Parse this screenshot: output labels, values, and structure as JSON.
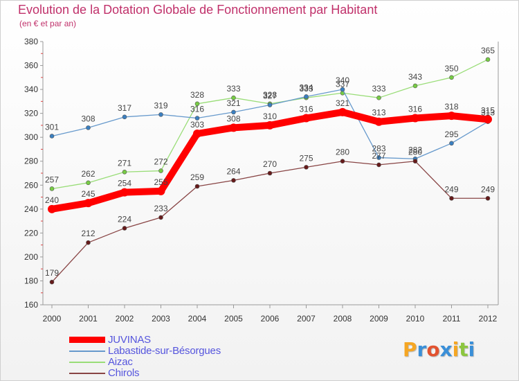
{
  "title": "Evolution de la Dotation Globale de Fonctionnement par Habitant",
  "subtitle": "(en € et par an)",
  "logo": {
    "text": "Proxiti",
    "letters": [
      {
        "ch": "P",
        "color": "#f5a623"
      },
      {
        "ch": "r",
        "color": "#3a8fd8"
      },
      {
        "ch": "o",
        "color": "#e2522f"
      },
      {
        "ch": "x",
        "color": "#3a8fd8"
      },
      {
        "ch": "i",
        "color": "#f5a623"
      },
      {
        "ch": "t",
        "color": "#8cc63f"
      },
      {
        "ch": "i",
        "color": "#3a8fd8"
      }
    ]
  },
  "chart_data": {
    "type": "line",
    "title": "Evolution de la Dotation Globale de Fonctionnement par Habitant",
    "subtitle": "(en € et par an)",
    "x": [
      "2000",
      "2001",
      "2002",
      "2003",
      "2004",
      "2005",
      "2006",
      "2007",
      "2008",
      "2009",
      "2010",
      "2011",
      "2012"
    ],
    "ylim": [
      160,
      380
    ],
    "yticks": [
      160,
      180,
      200,
      220,
      240,
      260,
      280,
      300,
      320,
      340,
      360,
      380
    ],
    "grid": false,
    "legend_position": "bottom-left",
    "series": [
      {
        "name": "JUVINAS",
        "color": "#ff0000",
        "marker": "#ff0000",
        "bold": true,
        "values": [
          240,
          245,
          254,
          255,
          303,
          308,
          310,
          316,
          321,
          313,
          316,
          318,
          315
        ]
      },
      {
        "name": "Labastide-sur-Bésorgues",
        "color": "#6699cc",
        "marker": "#3a7fc0",
        "values": [
          301,
          308,
          317,
          319,
          316,
          321,
          327,
          334,
          340,
          283,
          282,
          295,
          313
        ]
      },
      {
        "name": "Aizac",
        "color": "#99dd77",
        "marker": "#77cc44",
        "values": [
          257,
          262,
          271,
          272,
          328,
          333,
          328,
          333,
          337,
          333,
          343,
          350,
          365
        ]
      },
      {
        "name": "Chirols",
        "color": "#884444",
        "marker": "#661a1a",
        "values": [
          179,
          212,
          224,
          233,
          259,
          264,
          270,
          275,
          280,
          277,
          280,
          249,
          249
        ]
      }
    ],
    "data_labels": [
      [
        "240",
        "245",
        "254",
        "255",
        "303",
        "308",
        "310",
        "316",
        "321",
        "313",
        "316",
        "318",
        "315"
      ],
      [
        "301",
        "308",
        "317",
        "319",
        "316",
        "321",
        "327",
        "334",
        "340",
        "283",
        "282",
        "295",
        "313"
      ],
      [
        "257",
        "262",
        "271",
        "272",
        "328",
        "333",
        "328",
        "333",
        "337",
        "333",
        "343",
        "350",
        "365"
      ],
      [
        "179",
        "212",
        "224",
        "233",
        "259",
        "264",
        "270",
        "275",
        "280",
        "277",
        "280",
        "249",
        "249"
      ]
    ]
  }
}
